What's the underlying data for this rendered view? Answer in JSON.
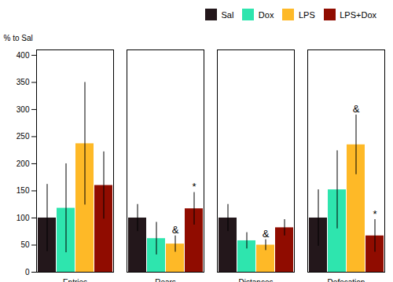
{
  "chart_data": {
    "type": "bar",
    "categories": [
      "Entries",
      "Rears",
      "Distances",
      "Defecation"
    ],
    "series": [
      {
        "name": "Sal",
        "values": [
          100,
          100,
          100,
          100
        ],
        "errors": [
          62,
          25,
          25,
          52
        ]
      },
      {
        "name": "Dox",
        "values": [
          118,
          62,
          58,
          152
        ],
        "errors": [
          82,
          30,
          15,
          72
        ]
      },
      {
        "name": "LPS",
        "values": [
          237,
          52,
          50,
          235
        ],
        "errors": [
          113,
          15,
          10,
          55
        ]
      },
      {
        "name": "LPS+Dox",
        "values": [
          160,
          117,
          82,
          67
        ],
        "errors": [
          62,
          30,
          15,
          30
        ]
      }
    ],
    "ylabel": "% to Sal",
    "ylim": [
      0,
      410
    ],
    "yticks": [
      0,
      50,
      100,
      150,
      200,
      250,
      300,
      350,
      400
    ],
    "grid": false,
    "legend": "upper right",
    "annotations": [
      {
        "text": "&",
        "category": "Rears",
        "series": "LPS"
      },
      {
        "text": "*",
        "category": "Rears",
        "series": "LPS+Dox"
      },
      {
        "text": "&",
        "category": "Distances",
        "series": "LPS"
      },
      {
        "text": "&",
        "category": "Defecation",
        "series": "LPS"
      },
      {
        "text": "*",
        "category": "Defecation",
        "series": "LPS+Dox"
      }
    ]
  }
}
